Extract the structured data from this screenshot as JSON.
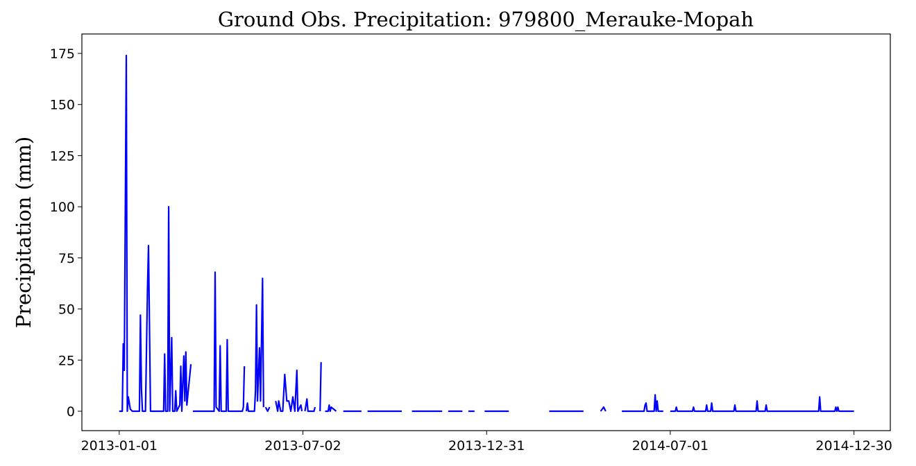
{
  "chart_data": {
    "type": "line",
    "title": "Ground Obs. Precipitation: 979800_Merauke-Mopah",
    "y_label": "Precipitation (mm)",
    "x": [
      "2013-01-01",
      "2013-01-04",
      "2013-01-05",
      "2013-01-06",
      "2013-01-08",
      "2013-01-09",
      "2013-01-10",
      "2013-01-12",
      "2013-01-14",
      "2013-01-18",
      "2013-01-21",
      "2013-01-22",
      "2013-01-23",
      "2013-01-24",
      "2013-01-27",
      "2013-01-29",
      "2013-01-30",
      "2013-02-01",
      "2013-02-14",
      "2013-02-15",
      "2013-02-16",
      "2013-02-18",
      "2013-02-19",
      "2013-02-20",
      "2013-02-22",
      "2013-02-23",
      "2013-02-25",
      "2013-02-26",
      "2013-02-27",
      "2013-03-02",
      "2013-03-03",
      "2013-03-04",
      "2013-03-06",
      "2013-03-07",
      "2013-03-08",
      "2013-03-09",
      "2013-03-13",
      "2013-03-14",
      "2013-03-15",
      "2013-04-05",
      "2013-04-06",
      "2013-04-07",
      "2013-04-10",
      "2013-04-11",
      "2013-04-12",
      "2013-04-17",
      "2013-04-18",
      "2013-04-19",
      "2013-05-03",
      "2013-05-04",
      "2013-05-05",
      "2013-05-06",
      "2013-05-07",
      "2013-05-08",
      "2013-05-09",
      "2013-05-15",
      "2013-05-16",
      "2013-05-17",
      "2013-05-18",
      "2013-05-20",
      "2013-05-21",
      "2013-05-23",
      "2013-05-24",
      "2013-05-25",
      "2013-05-26",
      "2013-05-28",
      "2013-05-30",
      "2013-05-31",
      "2013-06-05",
      "2013-06-07",
      "2013-06-08",
      "2013-06-10",
      "2013-06-12",
      "2013-06-14",
      "2013-06-16",
      "2013-06-18",
      "2013-06-20",
      "2013-06-22",
      "2013-06-24",
      "2013-06-26",
      "2013-06-27",
      "2013-06-30",
      "2013-07-01",
      "2013-07-02",
      "2013-07-04",
      "2013-07-06",
      "2013-07-07",
      "2013-07-13",
      "2013-07-14",
      "2013-07-15",
      "2013-07-19",
      "2013-07-20",
      "2013-07-21",
      "2013-07-24",
      "2013-07-27",
      "2013-07-28",
      "2013-07-29",
      "2013-07-30",
      "2013-08-04",
      "2013-08-06",
      "2013-08-11",
      "2013-08-29",
      "2013-09-01",
      "2013-09-04",
      "2013-10-08",
      "2013-10-10",
      "2013-10-18",
      "2013-11-17",
      "2013-11-19",
      "2013-11-23",
      "2013-12-07",
      "2013-12-10",
      "2013-12-13",
      "2013-12-19",
      "2013-12-22",
      "2013-12-29",
      "2014-01-20",
      "2014-01-22",
      "2014-01-25",
      "2014-03-03",
      "2014-04-06",
      "2014-04-08",
      "2014-04-23",
      "2014-04-26",
      "2014-04-28",
      "2014-04-30",
      "2014-05-14",
      "2014-06-05",
      "2014-06-06",
      "2014-06-07",
      "2014-06-08",
      "2014-06-15",
      "2014-06-16",
      "2014-06-17",
      "2014-06-18",
      "2014-06-19",
      "2014-06-24",
      "2014-06-26",
      "2014-07-01",
      "2014-07-06",
      "2014-07-07",
      "2014-07-08",
      "2014-07-23",
      "2014-07-24",
      "2014-07-25",
      "2014-08-05",
      "2014-08-06",
      "2014-08-07",
      "2014-08-10",
      "2014-08-11",
      "2014-08-12",
      "2014-09-02",
      "2014-09-03",
      "2014-09-04",
      "2014-09-24",
      "2014-09-25",
      "2014-09-26",
      "2014-10-03",
      "2014-10-04",
      "2014-10-05",
      "2014-11-25",
      "2014-11-26",
      "2014-11-27",
      "2014-12-11",
      "2014-12-12",
      "2014-12-13",
      "2014-12-14",
      "2014-12-15",
      "2014-12-30"
    ],
    "series": [
      {
        "color": "#0000ff",
        "values": [
          0,
          0,
          33,
          20,
          174,
          0,
          7,
          1,
          0,
          0,
          0,
          47,
          11,
          0,
          0,
          60,
          81,
          0,
          0,
          28,
          0,
          0,
          100,
          0,
          36,
          0,
          0,
          10,
          0,
          3,
          22,
          0,
          27,
          5,
          29,
          3,
          23,
          null,
          0,
          0,
          68,
          2,
          0,
          32,
          0,
          0,
          35,
          0,
          0,
          2,
          22,
          null,
          0,
          4,
          0,
          0,
          10,
          52,
          5,
          31,
          5,
          65,
          2,
          null,
          2,
          0,
          2,
          null,
          5,
          0,
          5,
          0,
          0,
          18,
          5,
          5,
          0,
          7,
          0,
          20,
          0,
          3,
          0,
          null,
          0,
          6,
          0,
          0,
          2,
          null,
          0,
          24,
          null,
          0,
          0,
          3,
          0,
          2,
          0,
          null,
          0,
          0,
          null,
          0,
          0,
          null,
          0,
          0,
          null,
          0,
          0,
          null,
          0,
          0,
          null,
          0,
          0,
          0,
          null,
          0,
          0,
          null,
          0,
          2,
          0,
          null,
          0,
          0,
          3,
          4,
          0,
          0,
          8,
          0,
          5,
          0,
          0,
          null,
          0,
          0,
          2,
          0,
          0,
          2,
          0,
          0,
          3,
          0,
          0,
          4,
          0,
          0,
          3,
          0,
          0,
          5,
          0,
          0,
          3,
          0,
          0,
          7,
          0,
          0,
          2,
          0,
          2,
          0,
          0
        ]
      }
    ],
    "xlim": [
      "2012-11-25",
      "2015-02-04"
    ],
    "xticks": [
      "2013-01-01",
      "2013-07-02",
      "2013-12-31",
      "2014-07-01",
      "2014-12-30"
    ],
    "ylim": [
      -9.5,
      184.5
    ],
    "yticks": [
      0,
      25,
      50,
      75,
      100,
      125,
      150,
      175
    ]
  }
}
